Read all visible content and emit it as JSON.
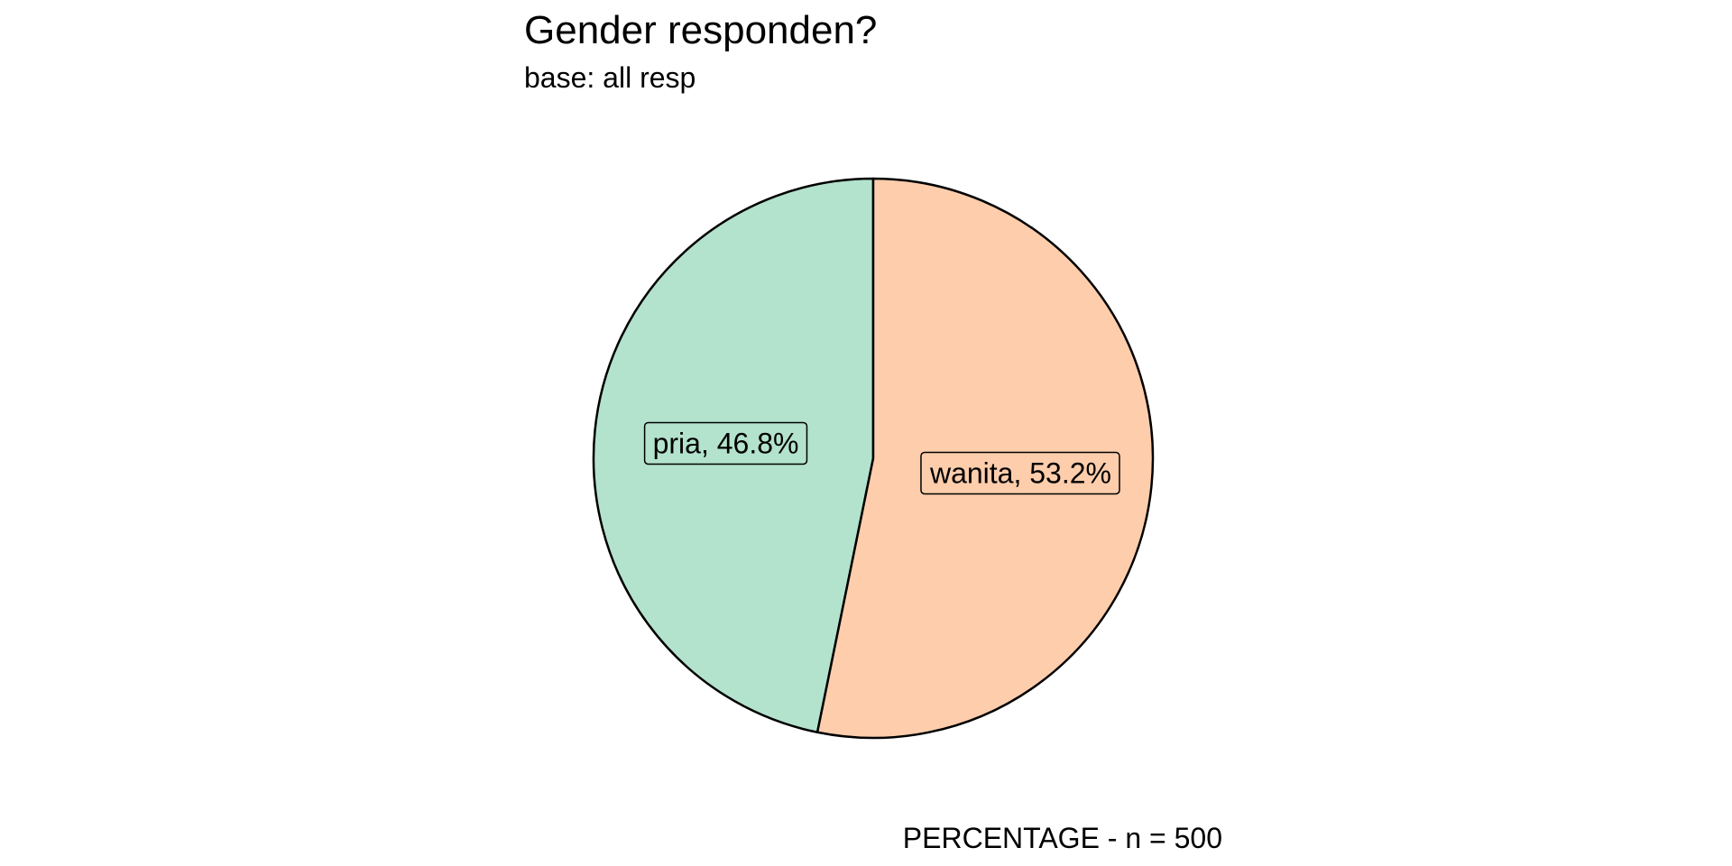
{
  "chart_data": {
    "type": "pie",
    "title": "Gender responden?",
    "subtitle": "base: all resp",
    "caption": "PERCENTAGE - n = 500",
    "categories": [
      "pria",
      "wanita"
    ],
    "values": [
      46.8,
      53.2
    ],
    "slice_labels": [
      "pria, 46.8%",
      "wanita, 53.2%"
    ],
    "colors": [
      "#b3e2cd",
      "#fdcdac"
    ],
    "outline_color": "#000000",
    "legend": "none",
    "grid": false
  }
}
